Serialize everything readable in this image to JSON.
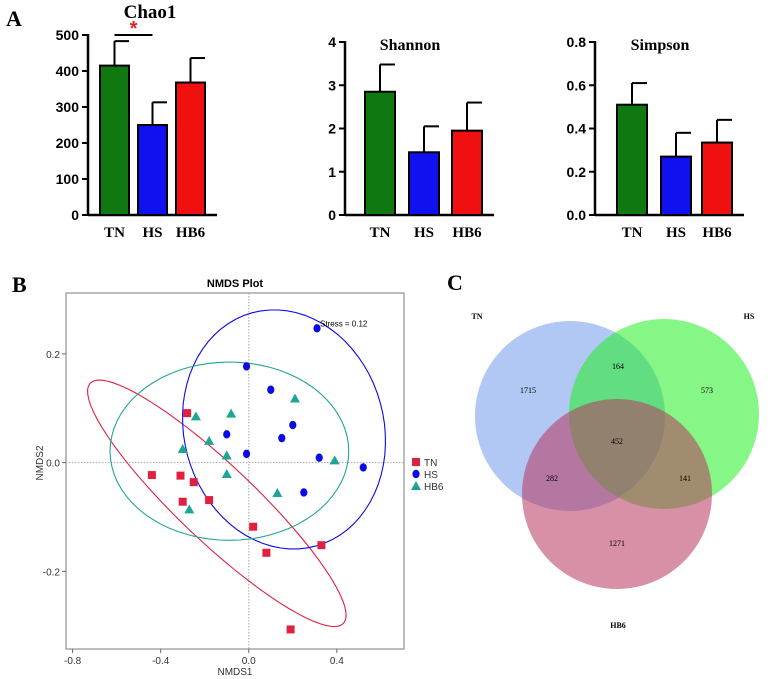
{
  "panel_labels": {
    "a": "A",
    "b": "B",
    "c": "C"
  },
  "chart_data": [
    {
      "type": "bar",
      "title": "Chao1",
      "categories": [
        "TN",
        "HS",
        "HB6"
      ],
      "values": [
        415,
        250,
        368
      ],
      "errors": [
        68,
        63,
        68
      ],
      "colors": [
        "#107810",
        "#1010f0",
        "#f01010"
      ],
      "ylim": [
        0,
        500
      ],
      "yticks": [
        "0",
        "100",
        "200",
        "300",
        "400",
        "500"
      ],
      "significance": {
        "between": [
          "TN",
          "HS"
        ],
        "label": "*",
        "color": "#e02020"
      }
    },
    {
      "type": "bar",
      "title": "Shannon",
      "categories": [
        "TN",
        "HS",
        "HB6"
      ],
      "values": [
        2.85,
        1.45,
        1.95
      ],
      "errors": [
        0.63,
        0.6,
        0.65
      ],
      "colors": [
        "#107810",
        "#1010f0",
        "#f01010"
      ],
      "ylim": [
        0,
        4
      ],
      "yticks": [
        "0",
        "1",
        "2",
        "3",
        "4"
      ]
    },
    {
      "type": "bar",
      "title": "Simpson",
      "categories": [
        "TN",
        "HS",
        "HB6"
      ],
      "values": [
        0.51,
        0.27,
        0.335
      ],
      "errors": [
        0.1,
        0.11,
        0.105
      ],
      "colors": [
        "#107810",
        "#1010f0",
        "#f01010"
      ],
      "ylim": [
        0,
        0.8
      ],
      "yticks": [
        "0.0",
        "0.2",
        "0.4",
        "0.6",
        "0.8"
      ]
    },
    {
      "type": "scatter",
      "title": "NMDS Plot",
      "xlabel": "NMDS1",
      "ylabel": "NMDS2",
      "xlim": [
        -0.83,
        0.705
      ],
      "ylim": [
        -0.343,
        0.312
      ],
      "xticks": [
        "-0.8",
        "-0.4",
        "0.0",
        "0.4"
      ],
      "yticks": [
        "-0.2",
        "0.0",
        "0.2"
      ],
      "annotation": "Stress = 0.12",
      "legend_position": "right",
      "series": [
        {
          "name": "TN",
          "marker": "square",
          "color": "#e0203f",
          "points": [
            [
              -0.44,
              -0.023
            ],
            [
              -0.31,
              -0.024
            ],
            [
              -0.25,
              -0.036
            ],
            [
              -0.3,
              -0.072
            ],
            [
              -0.18,
              -0.069
            ],
            [
              -0.28,
              0.091
            ],
            [
              0.02,
              -0.118
            ],
            [
              0.08,
              -0.166
            ],
            [
              0.33,
              -0.152
            ],
            [
              0.19,
              -0.307
            ]
          ],
          "ellipse": {
            "center": [
              -0.145,
              -0.075
            ],
            "axis1": [
              0.575,
              -0.221
            ],
            "axis2": [
              0.119,
              0.051
            ]
          }
        },
        {
          "name": "HS",
          "marker": "circle",
          "color": "#0a0ae6",
          "points": [
            [
              0.31,
              0.247
            ],
            [
              -0.01,
              0.177
            ],
            [
              0.1,
              0.134
            ],
            [
              0.2,
              0.069
            ],
            [
              0.15,
              0.045
            ],
            [
              -0.1,
              0.052
            ],
            [
              -0.01,
              0.016
            ],
            [
              0.32,
              0.009
            ],
            [
              0.52,
              -0.009
            ],
            [
              0.25,
              -0.055
            ]
          ],
          "ellipse": {
            "center": [
              0.16,
              0.061
            ],
            "axis1": [
              -0.1435,
              0.2147
            ],
            "axis2": [
              0.438,
              0.048
            ]
          }
        },
        {
          "name": "HB6",
          "marker": "triangle",
          "color": "#1fa594",
          "points": [
            [
              0.21,
              0.118
            ],
            [
              -0.24,
              0.085
            ],
            [
              -0.08,
              0.09
            ],
            [
              -0.18,
              0.04
            ],
            [
              -0.3,
              0.025
            ],
            [
              -0.1,
              0.013
            ],
            [
              -0.1,
              -0.021
            ],
            [
              0.13,
              -0.056
            ],
            [
              0.39,
              0.004
            ],
            [
              -0.27,
              -0.086
            ]
          ],
          "ellipse": {
            "center": [
              -0.088,
              0.021
            ],
            "axis1": [
              0.542,
              0
            ],
            "axis2": [
              0,
              0.164
            ]
          }
        }
      ]
    }
  ],
  "venn": {
    "sets": [
      {
        "name": "TN",
        "color": "#6f9bea"
      },
      {
        "name": "HS",
        "color": "#22ee22"
      },
      {
        "name": "HB6",
        "color": "#b8345f"
      }
    ],
    "regions": {
      "TN_only": "1715",
      "HS_only": "573",
      "HB6_only": "1271",
      "TN_HS": "164",
      "TN_HB6": "282",
      "HS_HB6": "141",
      "all": "452"
    }
  }
}
